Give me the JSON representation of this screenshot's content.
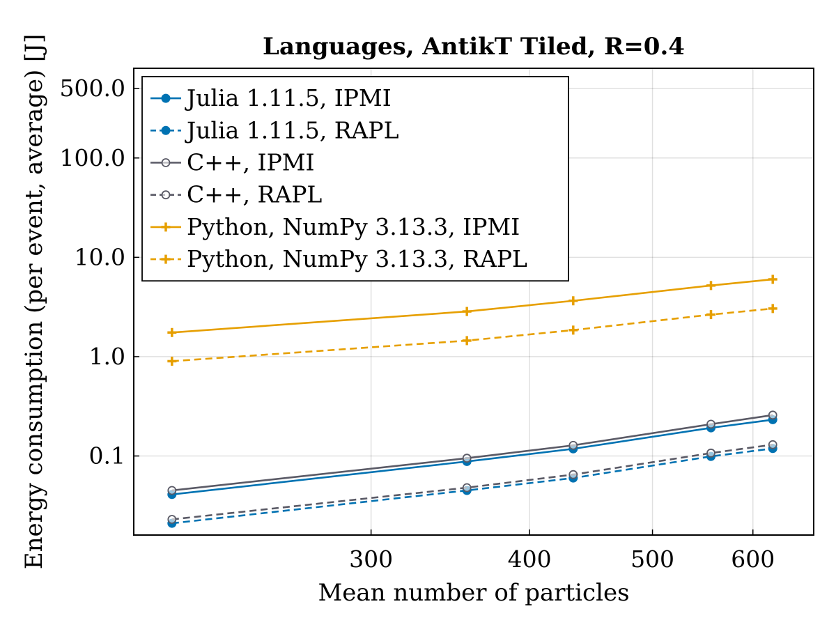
{
  "chart_data": {
    "type": "line",
    "title": "Languages, AntikT Tiled, R=0.4",
    "xlabel": "Mean number of particles",
    "ylabel": "Energy consumption (per event, average) [J]",
    "xscale": "log",
    "yscale": "log",
    "xlim": [
      195,
      670
    ],
    "ylim": [
      0.016,
      800
    ],
    "x_ticks": [
      300,
      400,
      500,
      600
    ],
    "x_tick_labels": [
      "300",
      "400",
      "500",
      "600"
    ],
    "y_ticks": [
      0.1,
      1.0,
      10.0,
      100.0,
      500.0
    ],
    "y_tick_labels": [
      "0.1",
      "1.0",
      "10.0",
      "100.0",
      "500.0"
    ],
    "grid": true,
    "legend_position": "top-left",
    "x": [
      209,
      357,
      433,
      556,
      622
    ],
    "series": [
      {
        "name": "Julia 1.11.5, IPMI",
        "values": [
          0.041,
          0.088,
          0.118,
          0.192,
          0.232
        ],
        "color": "#0072B2",
        "dash": "solid",
        "marker": "filled-circle"
      },
      {
        "name": "Julia 1.11.5, RAPL",
        "values": [
          0.021,
          0.045,
          0.06,
          0.099,
          0.119
        ],
        "color": "#0072B2",
        "dash": "dashed",
        "marker": "filled-circle"
      },
      {
        "name": "C++, IPMI",
        "values": [
          0.045,
          0.095,
          0.128,
          0.209,
          0.258
        ],
        "color": "#5A5A66",
        "dash": "solid",
        "marker": "open-circle"
      },
      {
        "name": "C++, RAPL",
        "values": [
          0.023,
          0.048,
          0.065,
          0.107,
          0.13
        ],
        "color": "#5A5A66",
        "dash": "dashed",
        "marker": "open-circle"
      },
      {
        "name": "Python, NumPy 3.13.3, IPMI",
        "values": [
          1.75,
          2.85,
          3.65,
          5.2,
          6.0
        ],
        "color": "#E69F00",
        "dash": "solid",
        "marker": "plus"
      },
      {
        "name": "Python, NumPy 3.13.3, RAPL",
        "values": [
          0.9,
          1.45,
          1.85,
          2.65,
          3.05
        ],
        "color": "#E69F00",
        "dash": "dashed",
        "marker": "plus"
      }
    ]
  }
}
